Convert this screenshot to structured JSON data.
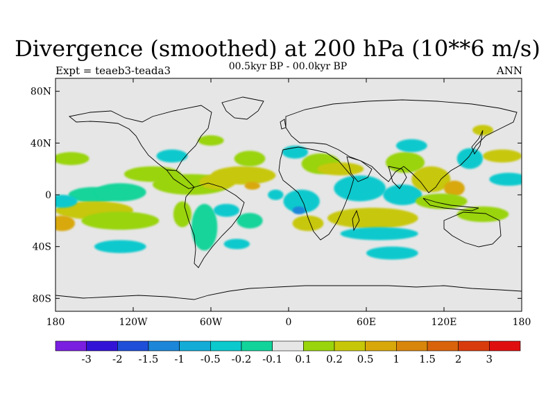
{
  "title": "Divergence (smoothed) at 200 hPa (10**6 m/s)",
  "subtitle": "00.5kyr BP - 00.0kyr BP",
  "left_label": "Expt = teaeb3-teada3",
  "right_label": "ANN",
  "colors": {
    "land_outline": "#000000",
    "background_field": "#e6e6e6",
    "frame": "#000000"
  },
  "chart_data": {
    "type": "heatmap",
    "projection": "cylindrical-equidistant",
    "xlim": [
      -180,
      180
    ],
    "ylim": [
      -90,
      90
    ],
    "x_ticks": [
      {
        "value": -180,
        "label": "180"
      },
      {
        "value": -120,
        "label": "120W"
      },
      {
        "value": -60,
        "label": "60W"
      },
      {
        "value": 0,
        "label": "0"
      },
      {
        "value": 60,
        "label": "60E"
      },
      {
        "value": 120,
        "label": "120E"
      },
      {
        "value": 180,
        "label": "180"
      }
    ],
    "y_ticks": [
      {
        "value": 80,
        "label": "80N"
      },
      {
        "value": 40,
        "label": "40N"
      },
      {
        "value": 0,
        "label": "0"
      },
      {
        "value": -40,
        "label": "40S"
      },
      {
        "value": -80,
        "label": "80S"
      }
    ],
    "colorbar": {
      "labels": [
        "-3",
        "-2",
        "-1.5",
        "-1",
        "-0.5",
        "-0.2",
        "-0.1",
        "0.1",
        "0.2",
        "0.5",
        "1",
        "1.5",
        "2",
        "3"
      ],
      "colors": [
        "#7a1fe0",
        "#3313d6",
        "#1f4fd8",
        "#1d86d9",
        "#12acd6",
        "#0bc9cd",
        "#12d49a",
        "#e6e6e6",
        "#99d40c",
        "#c7c70a",
        "#d8a80b",
        "#d8860b",
        "#d8630b",
        "#d93c0c",
        "#e00f0f"
      ]
    },
    "features": [
      {
        "type": "blob",
        "lon": -168,
        "lat": 28,
        "rx": 14,
        "ry": 5,
        "level": 8
      },
      {
        "type": "blob",
        "lon": -150,
        "lat": 0,
        "rx": 20,
        "ry": 6,
        "level": 6
      },
      {
        "type": "blob",
        "lon": -130,
        "lat": 2,
        "rx": 20,
        "ry": 7,
        "level": 6
      },
      {
        "type": "blob",
        "lon": -150,
        "lat": -12,
        "rx": 30,
        "ry": 7,
        "level": 9
      },
      {
        "type": "blob",
        "lon": -130,
        "lat": -20,
        "rx": 30,
        "ry": 7,
        "level": 8
      },
      {
        "type": "blob",
        "lon": -175,
        "lat": -22,
        "rx": 10,
        "ry": 6,
        "level": 10
      },
      {
        "type": "blob",
        "lon": -175,
        "lat": -5,
        "rx": 12,
        "ry": 5,
        "level": 5
      },
      {
        "type": "blob",
        "lon": -105,
        "lat": 16,
        "rx": 22,
        "ry": 6,
        "level": 8
      },
      {
        "type": "blob",
        "lon": -75,
        "lat": 8,
        "rx": 30,
        "ry": 8,
        "level": 8
      },
      {
        "type": "blob",
        "lon": -55,
        "lat": 10,
        "rx": 14,
        "ry": 6,
        "level": 9
      },
      {
        "type": "blob",
        "lon": -35,
        "lat": 15,
        "rx": 25,
        "ry": 7,
        "level": 9
      },
      {
        "type": "blob",
        "lon": -28,
        "lat": 7,
        "rx": 6,
        "ry": 3,
        "level": 10
      },
      {
        "type": "blob",
        "lon": -65,
        "lat": -25,
        "rx": 10,
        "ry": 18,
        "level": 6
      },
      {
        "type": "blob",
        "lon": -82,
        "lat": -15,
        "rx": 7,
        "ry": 10,
        "level": 8
      },
      {
        "type": "blob",
        "lon": -90,
        "lat": 30,
        "rx": 12,
        "ry": 5,
        "level": 5
      },
      {
        "type": "blob",
        "lon": -60,
        "lat": 42,
        "rx": 10,
        "ry": 4,
        "level": 8
      },
      {
        "type": "blob",
        "lon": -30,
        "lat": 28,
        "rx": 12,
        "ry": 6,
        "level": 8
      },
      {
        "type": "blob",
        "lon": -48,
        "lat": -12,
        "rx": 10,
        "ry": 5,
        "level": 5
      },
      {
        "type": "blob",
        "lon": -30,
        "lat": -20,
        "rx": 10,
        "ry": 6,
        "level": 6
      },
      {
        "type": "blob",
        "lon": 10,
        "lat": -5,
        "rx": 14,
        "ry": 9,
        "level": 5
      },
      {
        "type": "blob",
        "lon": 8,
        "lat": -12,
        "rx": 5,
        "ry": 3,
        "level": 3
      },
      {
        "type": "blob",
        "lon": 15,
        "lat": -22,
        "rx": 12,
        "ry": 6,
        "level": 9
      },
      {
        "type": "blob",
        "lon": 25,
        "lat": 24,
        "rx": 15,
        "ry": 8,
        "level": 8
      },
      {
        "type": "blob",
        "lon": 40,
        "lat": 20,
        "rx": 18,
        "ry": 5,
        "level": 9
      },
      {
        "type": "blob",
        "lon": 55,
        "lat": 5,
        "rx": 20,
        "ry": 10,
        "level": 5
      },
      {
        "type": "blob",
        "lon": 65,
        "lat": -18,
        "rx": 35,
        "ry": 8,
        "level": 9
      },
      {
        "type": "blob",
        "lon": 70,
        "lat": -30,
        "rx": 30,
        "ry": 5,
        "level": 5
      },
      {
        "type": "blob",
        "lon": 90,
        "lat": 25,
        "rx": 15,
        "ry": 8,
        "level": 8
      },
      {
        "type": "blob",
        "lon": 88,
        "lat": 0,
        "rx": 15,
        "ry": 8,
        "level": 5
      },
      {
        "type": "blob",
        "lon": 110,
        "lat": 12,
        "rx": 15,
        "ry": 10,
        "level": 9
      },
      {
        "type": "blob",
        "lon": 128,
        "lat": 5,
        "rx": 8,
        "ry": 6,
        "level": 10
      },
      {
        "type": "blob",
        "lon": 118,
        "lat": -5,
        "rx": 20,
        "ry": 6,
        "level": 8
      },
      {
        "type": "blob",
        "lon": 150,
        "lat": -15,
        "rx": 20,
        "ry": 6,
        "level": 8
      },
      {
        "type": "blob",
        "lon": 165,
        "lat": 30,
        "rx": 15,
        "ry": 5,
        "level": 9
      },
      {
        "type": "blob",
        "lon": 170,
        "lat": 12,
        "rx": 15,
        "ry": 5,
        "level": 5
      },
      {
        "type": "blob",
        "lon": 140,
        "lat": 28,
        "rx": 10,
        "ry": 8,
        "level": 5
      },
      {
        "type": "blob",
        "lon": 95,
        "lat": 38,
        "rx": 12,
        "ry": 5,
        "level": 5
      },
      {
        "type": "blob",
        "lon": 150,
        "lat": 50,
        "rx": 8,
        "ry": 4,
        "level": 9
      },
      {
        "type": "blob",
        "lon": -130,
        "lat": -40,
        "rx": 20,
        "ry": 5,
        "level": 5
      },
      {
        "type": "blob",
        "lon": -40,
        "lat": -38,
        "rx": 10,
        "ry": 4,
        "level": 5
      },
      {
        "type": "blob",
        "lon": 80,
        "lat": -45,
        "rx": 20,
        "ry": 5,
        "level": 5
      },
      {
        "type": "blob",
        "lon": 5,
        "lat": 33,
        "rx": 10,
        "ry": 5,
        "level": 5
      },
      {
        "type": "blob",
        "lon": -10,
        "lat": 0,
        "rx": 6,
        "ry": 4,
        "level": 5
      }
    ]
  }
}
